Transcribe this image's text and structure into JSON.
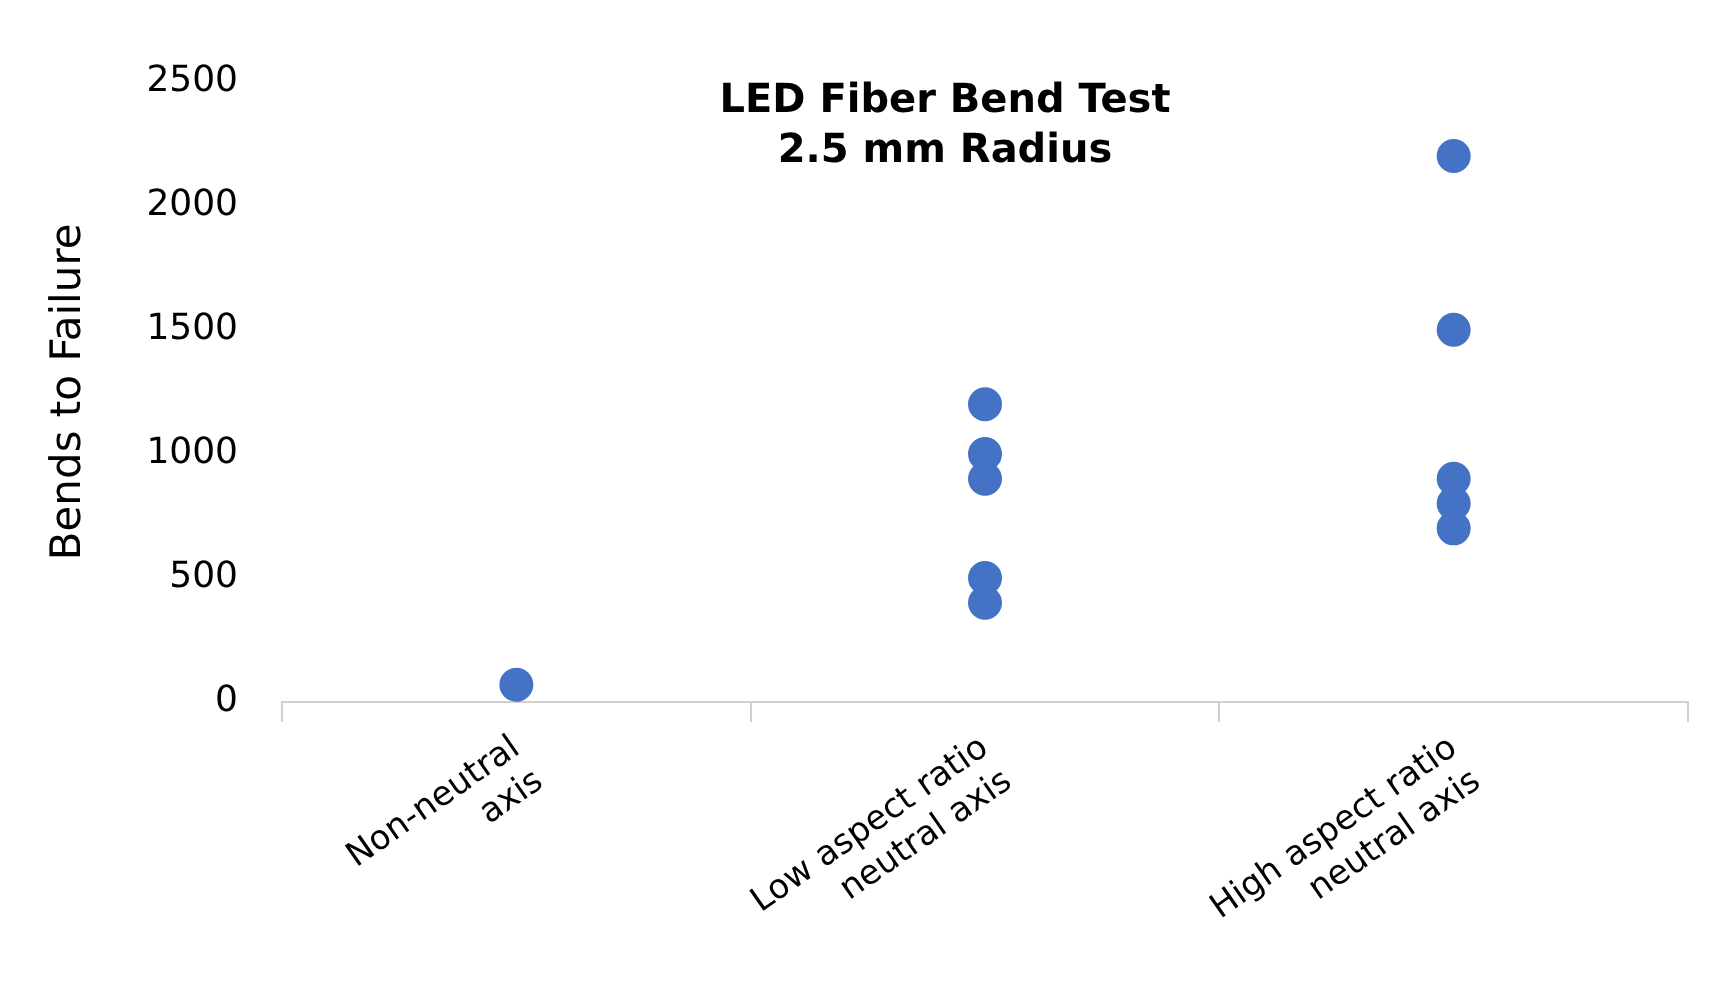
{
  "chart_data": {
    "type": "scatter",
    "title": "LED Fiber Bend Test\n2.5 mm Radius",
    "ylabel": "Bends to Failure",
    "categories": [
      "Non-neutral\naxis",
      "Low aspect ratio\nneutral axis",
      "High aspect ratio\nneutral axis"
    ],
    "series": [
      {
        "color": "#4472c4",
        "x": [
          "Non-neutral\naxis",
          "Low aspect ratio\nneutral axis",
          "Low aspect ratio\nneutral axis",
          "Low aspect ratio\nneutral axis",
          "Low aspect ratio\nneutral axis",
          "Low aspect ratio\nneutral axis",
          "High aspect ratio\nneutral axis",
          "High aspect ratio\nneutral axis",
          "High aspect ratio\nneutral axis",
          "High aspect ratio\nneutral axis",
          "High aspect ratio\nneutral axis"
        ],
        "values": [
          70,
          1200,
          1000,
          900,
          500,
          400,
          2200,
          1500,
          900,
          800,
          700
        ]
      }
    ],
    "ylim": [
      0,
      2500
    ],
    "yticks": [
      0,
      500,
      1000,
      1500,
      2000,
      2500
    ],
    "grid": false,
    "legend": false,
    "marker": "circle"
  }
}
